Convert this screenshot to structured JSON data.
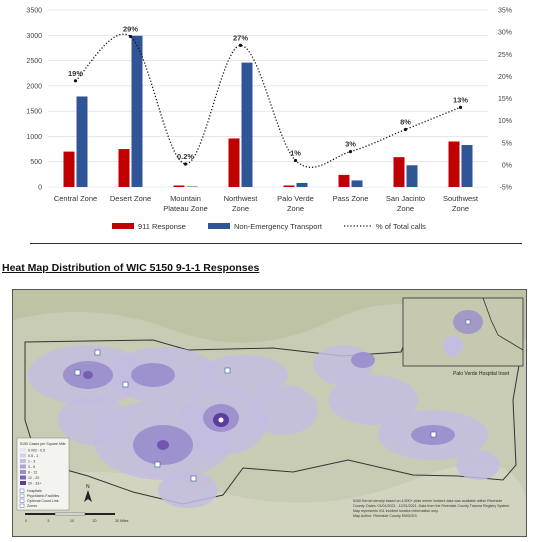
{
  "chart_data": {
    "type": "bar",
    "categories": [
      "Central Zone",
      "Desert Zone",
      "Mountain Plateau Zone",
      "Northwest Zone",
      "Palo Verde Zone",
      "Pass Zone",
      "San Jacinto Zone",
      "Southwest Zone"
    ],
    "category_lines": [
      [
        "Central Zone"
      ],
      [
        "Desert Zone"
      ],
      [
        "Mountain",
        "Plateau Zone"
      ],
      [
        "Northwest",
        "Zone"
      ],
      [
        "Palo Verde",
        "Zone"
      ],
      [
        "Pass Zone"
      ],
      [
        "San Jacinto",
        "Zone"
      ],
      [
        "Southwest",
        "Zone"
      ]
    ],
    "series": [
      {
        "name": "911 Response",
        "values": [
          700,
          750,
          30,
          960,
          30,
          240,
          590,
          900
        ],
        "color": "#C00000"
      },
      {
        "name": "Non-Emergency Transport",
        "values": [
          1790,
          2990,
          10,
          2460,
          80,
          130,
          430,
          830
        ],
        "color": "#2F5597"
      }
    ],
    "line_series": {
      "name": "% of Total calls",
      "values": [
        19,
        29,
        0.2,
        27,
        1,
        3,
        8,
        13
      ],
      "labels": [
        "19%",
        "29%",
        "0.2%",
        "27%",
        "1%",
        "3%",
        "8%",
        "13%"
      ],
      "style": "dotted"
    },
    "ylim": [
      0,
      3500
    ],
    "y_ticks": [
      0,
      500,
      1000,
      1500,
      2000,
      2500,
      3000,
      3500
    ],
    "y2lim": [
      -5,
      35
    ],
    "y2_ticks": [
      "-5%",
      "0%",
      "5%",
      "10%",
      "15%",
      "20%",
      "25%",
      "30%",
      "35%"
    ],
    "legend_position": "bottom",
    "grid": true
  },
  "section_heading": "Heat Map Distribution of WIC 5150 9-1-1 Responses",
  "map": {
    "inset_label": "Palo Verde Hospital Inset",
    "legend_title": "5150 Cases per Square Mile",
    "legend_items": [
      "0.002 - 0.5",
      "0.5 - 1",
      "1 - 3",
      "3 - 6",
      "6 - 12",
      "12 - 20",
      "20 - 33+"
    ],
    "legend_extra": [
      "Hospitals",
      "Psychiatric Facilities",
      "Optional Count Line",
      "Zones"
    ],
    "note_lines": [
      "5150 Kernel density based on 4,500+ plots where incident data was available within Riverside",
      "County. Dates: 01/01/2021 - 12/31/2021. Data from the Riverside County Trauma Registry System.",
      "Map represents 911 incident location information only.",
      "Map Author: Riverside County EMS/GIS"
    ],
    "scale_labels": [
      "0",
      "5",
      "10",
      "20",
      "30 Miles"
    ],
    "north_label": "N",
    "colors": {
      "land": "#c9ccb4",
      "heat_light": "#c3bde0",
      "heat_mid": "#9a8dcc",
      "heat_dark": "#5c3d9e",
      "border": "#333333"
    }
  }
}
